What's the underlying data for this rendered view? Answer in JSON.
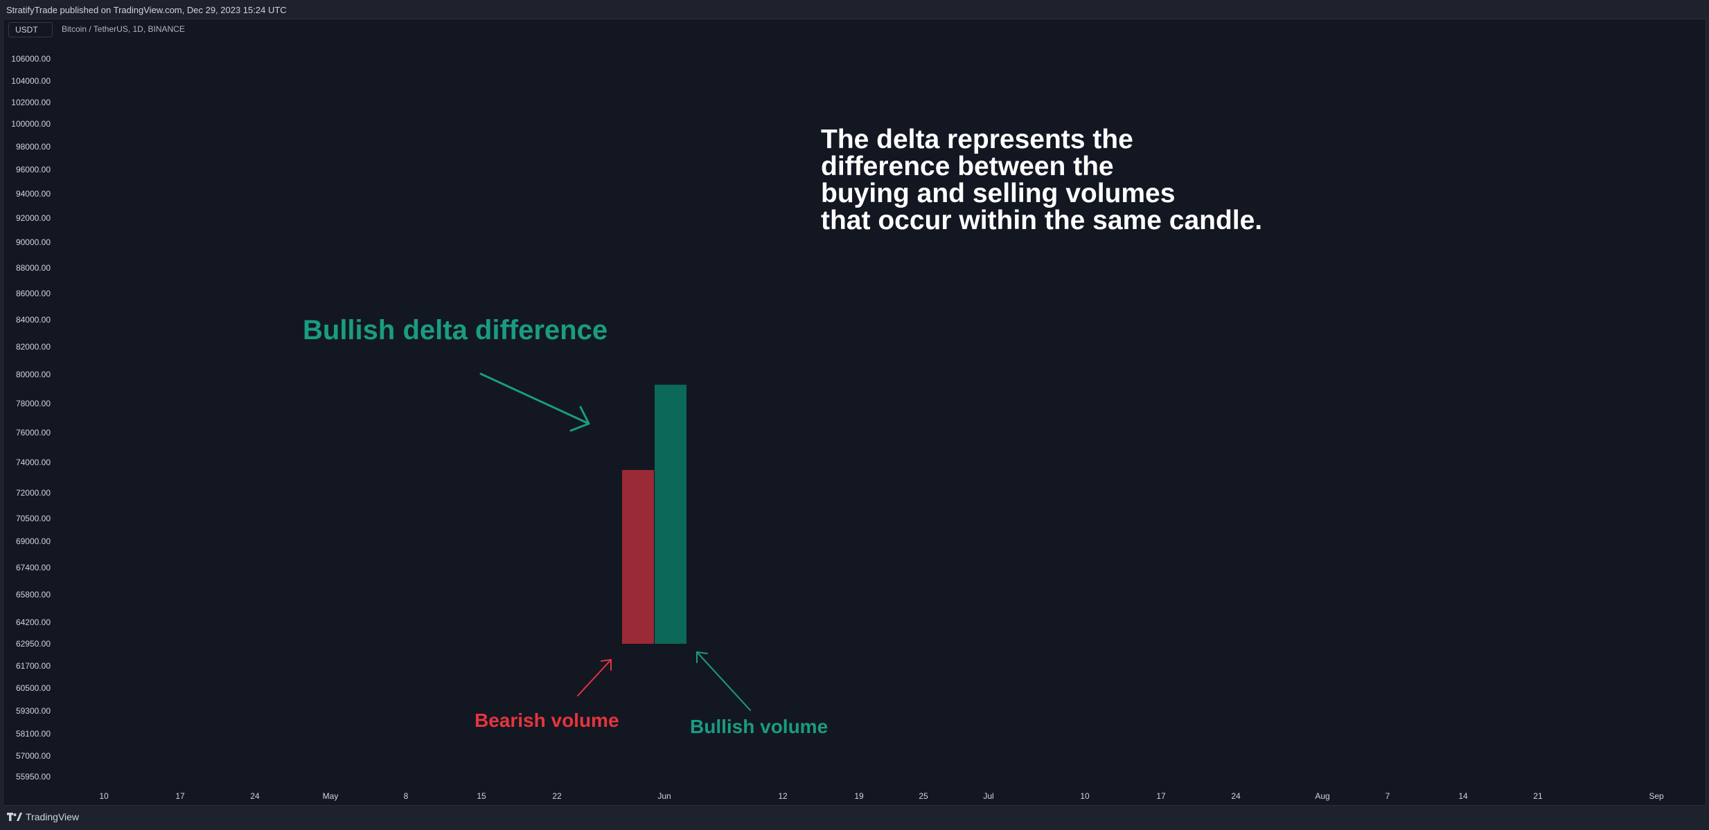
{
  "header": {
    "publish_line": "StratifyTrade published on TradingView.com, Dec 29, 2023 15:24 UTC"
  },
  "chart_header": {
    "currency_badge": "USDT",
    "symbol_line": "Bitcoin / TetherUS, 1D, BINANCE"
  },
  "footer": {
    "brand": "TradingView"
  },
  "annotations": {
    "main_lines": [
      "The delta represents the",
      "difference between the",
      "buying and selling volumes",
      "that occur within the same candle."
    ],
    "bullish_delta": "Bullish delta difference",
    "bearish_volume": "Bearish volume",
    "bullish_volume": "Bullish volume"
  },
  "colors": {
    "background": "#131722",
    "bearish": "#9b2a37",
    "bullish": "#0c6857",
    "bullish_text": "#1a9c80",
    "bearish_text": "#e5353d",
    "axis_text": "#d1d4dc"
  },
  "chart_data": {
    "type": "bar",
    "title": "",
    "xlabel": "",
    "ylabel": "",
    "y_tick_labels": [
      "106000.00",
      "104000.00",
      "102000.00",
      "100000.00",
      "98000.00",
      "96000.00",
      "94000.00",
      "92000.00",
      "90000.00",
      "88000.00",
      "86000.00",
      "84000.00",
      "82000.00",
      "80000.00",
      "78000.00",
      "76000.00",
      "74000.00",
      "72000.00",
      "70500.00",
      "69000.00",
      "67400.00",
      "65800.00",
      "64200.00",
      "62950.00",
      "61700.00",
      "60500.00",
      "59300.00",
      "58100.00",
      "57000.00",
      "55950.00"
    ],
    "x_tick_labels": [
      "10",
      "17",
      "24",
      "May",
      "8",
      "15",
      "22",
      "Jun",
      "12",
      "19",
      "25",
      "Jul",
      "10",
      "17",
      "24",
      "Aug",
      "7",
      "14",
      "21",
      "Sep"
    ],
    "series": [
      {
        "name": "Bearish volume",
        "base": 62950,
        "top": 73500
      },
      {
        "name": "Bullish volume",
        "base": 62950,
        "top": 79300
      }
    ]
  }
}
